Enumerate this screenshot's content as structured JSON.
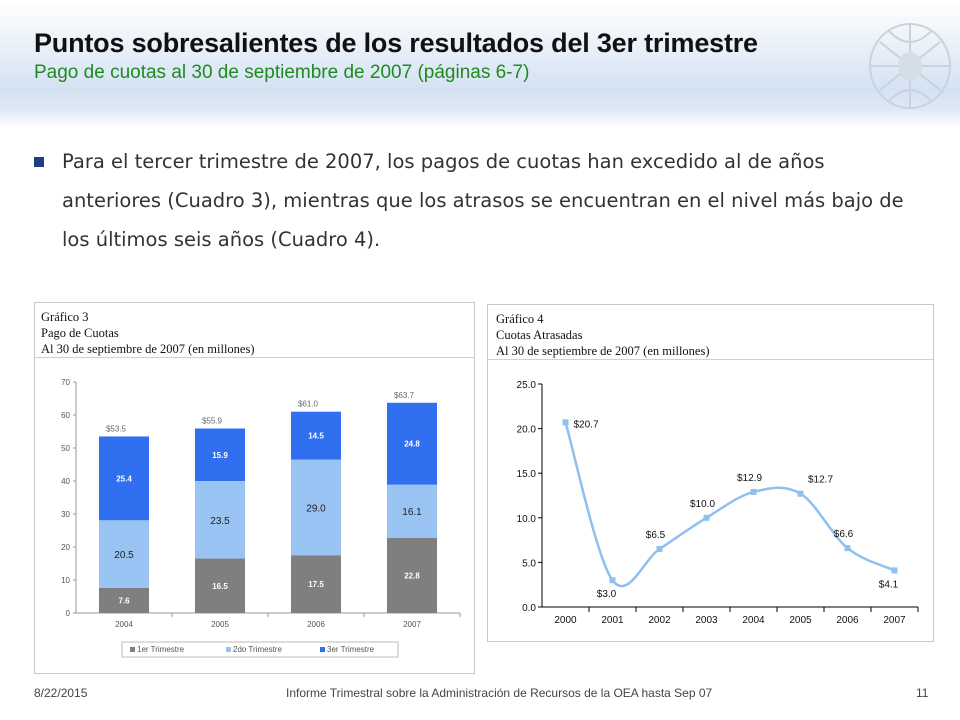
{
  "slide": {
    "title": "Puntos sobresalientes de los resultados del 3er trimestre",
    "subtitle": "Pago de cuotas al 30 de septiembre de 2007 (páginas 6-7)",
    "body": "Para el tercer trimestre de 2007, los pagos de cuotas han excedido al de años anteriores (Cuadro 3), mientras que los atrasos se encuentran en el nivel más bajo de los últimos seis años (Cuadro 4).",
    "colors": {
      "accent": "#1f8a1f",
      "bullet": "#1f3c88"
    },
    "icons": [
      "square-bullet-icon",
      "oas-emblem-icon"
    ]
  },
  "footer": {
    "date": "8/22/2015",
    "center": "Informe Trimestral sobre la Administración de Recursos de la OEA hasta Sep 07",
    "page": "11"
  },
  "chart_data": [
    {
      "type": "bar",
      "stacked": true,
      "title_lines": [
        "Gráfico 3",
        "Pago de Cuotas",
        "Al 30 de septiembre de 2007 (en millones)"
      ],
      "categories": [
        "2004",
        "2005",
        "2006",
        "2007"
      ],
      "series": [
        {
          "name": "1er Trimestre",
          "values": [
            7.6,
            16.5,
            17.5,
            22.8
          ],
          "color": "#7f7f7f"
        },
        {
          "name": "2do Trimestre",
          "values": [
            20.5,
            23.5,
            29.0,
            16.1
          ],
          "color": "#99c3f3"
        },
        {
          "name": "3er Trimestre",
          "values": [
            25.4,
            15.9,
            14.5,
            24.8
          ],
          "color": "#2f6ff0"
        }
      ],
      "totals": [
        "$53.5",
        "$55.9",
        "$61.0",
        "$63.7"
      ],
      "yticks": [
        "0",
        "10",
        "20",
        "30",
        "40",
        "50",
        "60",
        "70"
      ],
      "ylim": [
        0,
        70
      ],
      "legend_position": "bottom",
      "grid": false
    },
    {
      "type": "line",
      "title_lines": [
        "Gráfico 4",
        "Cuotas Atrasadas",
        "Al 30 de septiembre de 2007 (en millones)"
      ],
      "x": [
        "2000",
        "2001",
        "2002",
        "2003",
        "2004",
        "2005",
        "2006",
        "2007"
      ],
      "values": [
        20.7,
        3.0,
        6.5,
        10.0,
        12.9,
        12.7,
        6.6,
        4.1
      ],
      "labels": [
        "$20.7",
        "$3.0",
        "$6.5",
        "$10.0",
        "$12.9",
        "$12.7",
        "$6.6",
        "$4.1"
      ],
      "yticks": [
        "0.0",
        "5.0",
        "10.0",
        "15.0",
        "20.0",
        "25.0"
      ],
      "ylim": [
        0,
        25
      ],
      "color": "#8fc0ee",
      "smooth": true,
      "grid": false
    }
  ]
}
